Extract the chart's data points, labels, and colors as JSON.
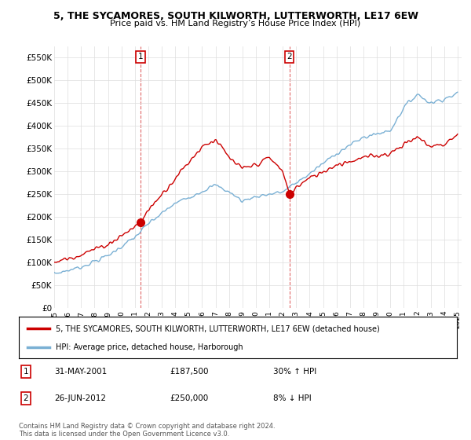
{
  "title": "5, THE SYCAMORES, SOUTH KILWORTH, LUTTERWORTH, LE17 6EW",
  "subtitle": "Price paid vs. HM Land Registry’s House Price Index (HPI)",
  "ylim": [
    0,
    575000
  ],
  "yticks": [
    0,
    50000,
    100000,
    150000,
    200000,
    250000,
    300000,
    350000,
    400000,
    450000,
    500000,
    550000
  ],
  "ytick_labels": [
    "£0",
    "£50K",
    "£100K",
    "£150K",
    "£200K",
    "£250K",
    "£300K",
    "£350K",
    "£400K",
    "£450K",
    "£500K",
    "£550K"
  ],
  "xtick_years": [
    1995,
    1996,
    1997,
    1998,
    1999,
    2000,
    2001,
    2002,
    2003,
    2004,
    2005,
    2006,
    2007,
    2008,
    2009,
    2010,
    2011,
    2012,
    2013,
    2014,
    2015,
    2016,
    2017,
    2018,
    2019,
    2020,
    2021,
    2022,
    2023,
    2024,
    2025
  ],
  "property_color": "#cc0000",
  "hpi_color": "#7ab0d4",
  "sale1_year": 2001.42,
  "sale1_price": 187500,
  "sale2_year": 2012.49,
  "sale2_price": 250000,
  "legend_property": "5, THE SYCAMORES, SOUTH KILWORTH, LUTTERWORTH, LE17 6EW (detached house)",
  "legend_hpi": "HPI: Average price, detached house, Harborough",
  "table_rows": [
    {
      "num": "1",
      "date": "31-MAY-2001",
      "price": "£187,500",
      "hpi": "30% ↑ HPI"
    },
    {
      "num": "2",
      "date": "26-JUN-2012",
      "price": "£250,000",
      "hpi": "8% ↓ HPI"
    }
  ],
  "footer": "Contains HM Land Registry data © Crown copyright and database right 2024.\nThis data is licensed under the Open Government Licence v3.0.",
  "background_color": "#ffffff",
  "grid_color": "#dddddd"
}
